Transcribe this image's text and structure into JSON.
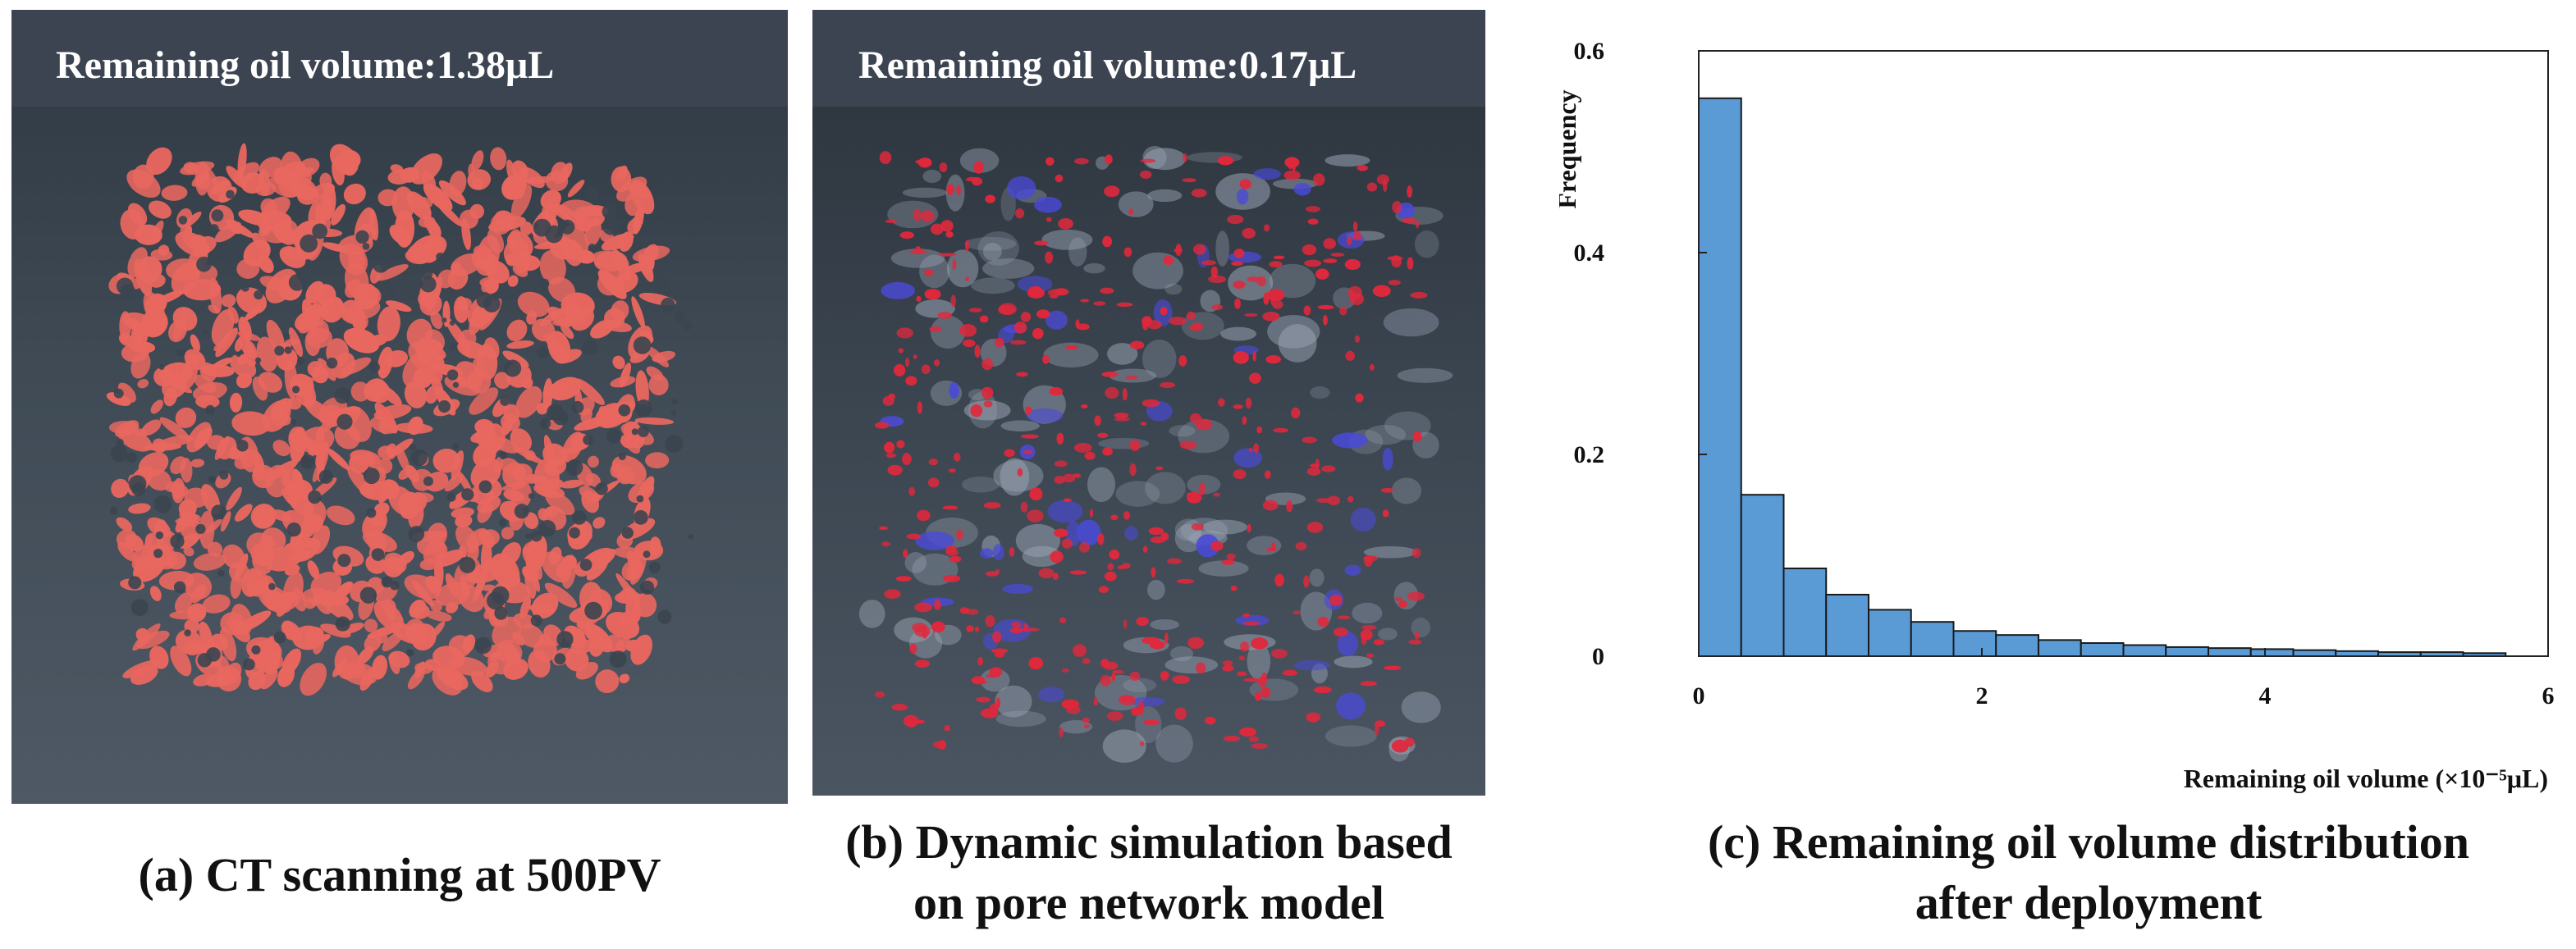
{
  "panel_a": {
    "banner": "Remaining oil volume:1.38μL",
    "caption": "(a) CT scanning at 500PV"
  },
  "panel_b": {
    "banner": "Remaining oil volume:0.17μL",
    "caption_line1": "(b) Dynamic simulation based",
    "caption_line2": "on pore network model"
  },
  "panel_c": {
    "caption_line1": "(c) Remaining oil volume distribution",
    "caption_line2": "after deployment"
  },
  "colors": {
    "bar": "#5b9bd5",
    "oil_ct": "#e8675f",
    "oil_sim": "#e0283c",
    "water_sim": "#4a4ad8",
    "rock_sim": "#9aa4b4"
  },
  "chart_data": {
    "type": "bar",
    "title": "",
    "xlabel": "Remaining oil volume (×10⁻⁵μL)",
    "ylabel": "Frequency",
    "xlim": [
      0,
      6
    ],
    "ylim": [
      0,
      0.6
    ],
    "x_ticks": [
      0,
      2,
      4,
      6
    ],
    "y_ticks": [
      0,
      0.2,
      0.4,
      0.6
    ],
    "x_tick_labels": [
      "0",
      "2",
      "4",
      "6"
    ],
    "y_tick_labels": [
      "0",
      "0.2",
      "0.4",
      "0.6"
    ],
    "bin_width": 0.3,
    "bins_start": [
      0,
      0.3,
      0.6,
      0.9,
      1.2,
      1.5,
      1.8,
      2.1,
      2.4,
      2.7,
      3.0,
      3.3,
      3.6,
      3.9,
      4.2,
      4.5,
      4.8,
      5.1,
      5.4
    ],
    "values": [
      0.553,
      0.16,
      0.087,
      0.061,
      0.046,
      0.034,
      0.025,
      0.021,
      0.016,
      0.013,
      0.011,
      0.009,
      0.008,
      0.007,
      0.006,
      0.005,
      0.004,
      0.004,
      0.003
    ],
    "grid": false,
    "legend": "none"
  }
}
